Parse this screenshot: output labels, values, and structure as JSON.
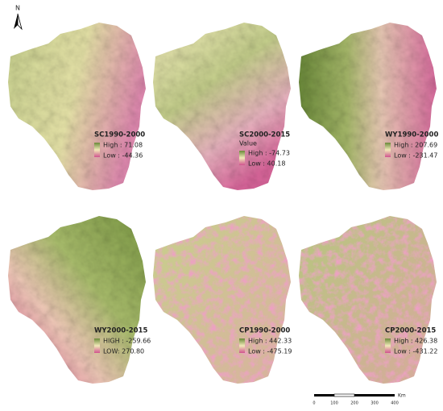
{
  "north": "N",
  "panels": [
    {
      "title": "SC1990-2000",
      "high": "High : 71.08",
      "low": "Low : -44.36"
    },
    {
      "title": "SC2000-2015",
      "value_label": "Value",
      "high": "High : -74.73",
      "low": "Low : 40.18"
    },
    {
      "title": "WY1990-2000",
      "high": "High : 207.69",
      "low": "Low : -231.47"
    },
    {
      "title": "WY2000-2015",
      "high": "HIGH : -259.66",
      "low": "LOW: 270.80"
    },
    {
      "title": "CP1990-2000",
      "high": "High : 442.33",
      "low": "Low : -475.19"
    },
    {
      "title": "CP2000-2015",
      "high": "High : 426.38",
      "low": "Low : -431.22"
    }
  ],
  "scale_bar": {
    "ticks": [
      "0",
      "100",
      "200",
      "300",
      "400"
    ],
    "unit": "Km"
  }
}
